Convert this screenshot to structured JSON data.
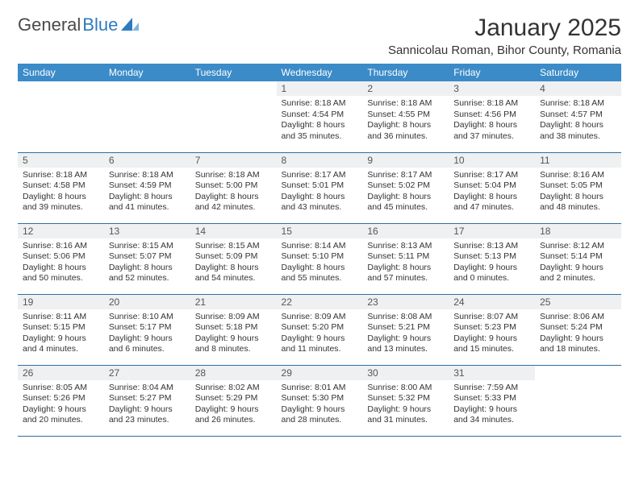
{
  "brand": {
    "part1": "General",
    "part2": "Blue"
  },
  "title": "January 2025",
  "location": "Sannicolau Roman, Bihor County, Romania",
  "colors": {
    "header_bg": "#3b8bc8",
    "header_text": "#ffffff",
    "daynum_bg": "#eef0f1",
    "row_border": "#2f6fa3",
    "text": "#333333",
    "logo_gray": "#4a4a4a",
    "logo_blue": "#2f7bbf",
    "background": "#ffffff"
  },
  "fonts": {
    "title_size_pt": 22,
    "location_size_pt": 11,
    "header_size_pt": 9,
    "daynum_size_pt": 9,
    "body_size_pt": 8
  },
  "weekdays": [
    "Sunday",
    "Monday",
    "Tuesday",
    "Wednesday",
    "Thursday",
    "Friday",
    "Saturday"
  ],
  "weeks": [
    [
      {
        "n": "",
        "sr": "",
        "ss": "",
        "dl": ""
      },
      {
        "n": "",
        "sr": "",
        "ss": "",
        "dl": ""
      },
      {
        "n": "",
        "sr": "",
        "ss": "",
        "dl": ""
      },
      {
        "n": "1",
        "sr": "Sunrise: 8:18 AM",
        "ss": "Sunset: 4:54 PM",
        "dl": "Daylight: 8 hours and 35 minutes."
      },
      {
        "n": "2",
        "sr": "Sunrise: 8:18 AM",
        "ss": "Sunset: 4:55 PM",
        "dl": "Daylight: 8 hours and 36 minutes."
      },
      {
        "n": "3",
        "sr": "Sunrise: 8:18 AM",
        "ss": "Sunset: 4:56 PM",
        "dl": "Daylight: 8 hours and 37 minutes."
      },
      {
        "n": "4",
        "sr": "Sunrise: 8:18 AM",
        "ss": "Sunset: 4:57 PM",
        "dl": "Daylight: 8 hours and 38 minutes."
      }
    ],
    [
      {
        "n": "5",
        "sr": "Sunrise: 8:18 AM",
        "ss": "Sunset: 4:58 PM",
        "dl": "Daylight: 8 hours and 39 minutes."
      },
      {
        "n": "6",
        "sr": "Sunrise: 8:18 AM",
        "ss": "Sunset: 4:59 PM",
        "dl": "Daylight: 8 hours and 41 minutes."
      },
      {
        "n": "7",
        "sr": "Sunrise: 8:18 AM",
        "ss": "Sunset: 5:00 PM",
        "dl": "Daylight: 8 hours and 42 minutes."
      },
      {
        "n": "8",
        "sr": "Sunrise: 8:17 AM",
        "ss": "Sunset: 5:01 PM",
        "dl": "Daylight: 8 hours and 43 minutes."
      },
      {
        "n": "9",
        "sr": "Sunrise: 8:17 AM",
        "ss": "Sunset: 5:02 PM",
        "dl": "Daylight: 8 hours and 45 minutes."
      },
      {
        "n": "10",
        "sr": "Sunrise: 8:17 AM",
        "ss": "Sunset: 5:04 PM",
        "dl": "Daylight: 8 hours and 47 minutes."
      },
      {
        "n": "11",
        "sr": "Sunrise: 8:16 AM",
        "ss": "Sunset: 5:05 PM",
        "dl": "Daylight: 8 hours and 48 minutes."
      }
    ],
    [
      {
        "n": "12",
        "sr": "Sunrise: 8:16 AM",
        "ss": "Sunset: 5:06 PM",
        "dl": "Daylight: 8 hours and 50 minutes."
      },
      {
        "n": "13",
        "sr": "Sunrise: 8:15 AM",
        "ss": "Sunset: 5:07 PM",
        "dl": "Daylight: 8 hours and 52 minutes."
      },
      {
        "n": "14",
        "sr": "Sunrise: 8:15 AM",
        "ss": "Sunset: 5:09 PM",
        "dl": "Daylight: 8 hours and 54 minutes."
      },
      {
        "n": "15",
        "sr": "Sunrise: 8:14 AM",
        "ss": "Sunset: 5:10 PM",
        "dl": "Daylight: 8 hours and 55 minutes."
      },
      {
        "n": "16",
        "sr": "Sunrise: 8:13 AM",
        "ss": "Sunset: 5:11 PM",
        "dl": "Daylight: 8 hours and 57 minutes."
      },
      {
        "n": "17",
        "sr": "Sunrise: 8:13 AM",
        "ss": "Sunset: 5:13 PM",
        "dl": "Daylight: 9 hours and 0 minutes."
      },
      {
        "n": "18",
        "sr": "Sunrise: 8:12 AM",
        "ss": "Sunset: 5:14 PM",
        "dl": "Daylight: 9 hours and 2 minutes."
      }
    ],
    [
      {
        "n": "19",
        "sr": "Sunrise: 8:11 AM",
        "ss": "Sunset: 5:15 PM",
        "dl": "Daylight: 9 hours and 4 minutes."
      },
      {
        "n": "20",
        "sr": "Sunrise: 8:10 AM",
        "ss": "Sunset: 5:17 PM",
        "dl": "Daylight: 9 hours and 6 minutes."
      },
      {
        "n": "21",
        "sr": "Sunrise: 8:09 AM",
        "ss": "Sunset: 5:18 PM",
        "dl": "Daylight: 9 hours and 8 minutes."
      },
      {
        "n": "22",
        "sr": "Sunrise: 8:09 AM",
        "ss": "Sunset: 5:20 PM",
        "dl": "Daylight: 9 hours and 11 minutes."
      },
      {
        "n": "23",
        "sr": "Sunrise: 8:08 AM",
        "ss": "Sunset: 5:21 PM",
        "dl": "Daylight: 9 hours and 13 minutes."
      },
      {
        "n": "24",
        "sr": "Sunrise: 8:07 AM",
        "ss": "Sunset: 5:23 PM",
        "dl": "Daylight: 9 hours and 15 minutes."
      },
      {
        "n": "25",
        "sr": "Sunrise: 8:06 AM",
        "ss": "Sunset: 5:24 PM",
        "dl": "Daylight: 9 hours and 18 minutes."
      }
    ],
    [
      {
        "n": "26",
        "sr": "Sunrise: 8:05 AM",
        "ss": "Sunset: 5:26 PM",
        "dl": "Daylight: 9 hours and 20 minutes."
      },
      {
        "n": "27",
        "sr": "Sunrise: 8:04 AM",
        "ss": "Sunset: 5:27 PM",
        "dl": "Daylight: 9 hours and 23 minutes."
      },
      {
        "n": "28",
        "sr": "Sunrise: 8:02 AM",
        "ss": "Sunset: 5:29 PM",
        "dl": "Daylight: 9 hours and 26 minutes."
      },
      {
        "n": "29",
        "sr": "Sunrise: 8:01 AM",
        "ss": "Sunset: 5:30 PM",
        "dl": "Daylight: 9 hours and 28 minutes."
      },
      {
        "n": "30",
        "sr": "Sunrise: 8:00 AM",
        "ss": "Sunset: 5:32 PM",
        "dl": "Daylight: 9 hours and 31 minutes."
      },
      {
        "n": "31",
        "sr": "Sunrise: 7:59 AM",
        "ss": "Sunset: 5:33 PM",
        "dl": "Daylight: 9 hours and 34 minutes."
      },
      {
        "n": "",
        "sr": "",
        "ss": "",
        "dl": ""
      }
    ]
  ]
}
